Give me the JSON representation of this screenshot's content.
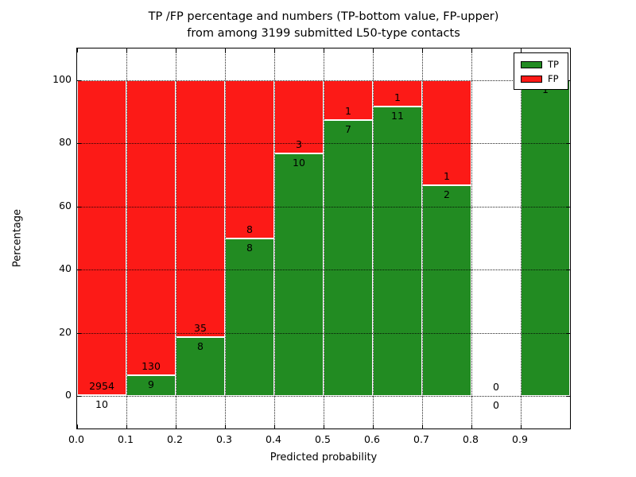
{
  "figure": {
    "title_line1": "TP /FP percentage and numbers (TP-bottom value, FP-upper)",
    "title_line2": "from among 3199 submitted L50-type contacts"
  },
  "chart_data": {
    "type": "bar",
    "stacked": true,
    "title": "TP /FP percentage and numbers (TP-bottom value, FP-upper) from among 3199 submitted L50-type contacts",
    "xlabel": "Predicted probability",
    "ylabel": "Percentage",
    "xlim": [
      0.0,
      1.0
    ],
    "ylim": [
      0,
      100
    ],
    "grid": true,
    "total_contacts": 3199,
    "xtick_labels": [
      "0.0",
      "0.1",
      "0.2",
      "0.3",
      "0.4",
      "0.5",
      "0.6",
      "0.7",
      "0.8",
      "0.9"
    ],
    "ytick_values": [
      0,
      20,
      40,
      60,
      80,
      100
    ],
    "legend": {
      "position": "upper right",
      "entries": [
        {
          "label": "TP",
          "color": "#228b22"
        },
        {
          "label": "FP",
          "color": "#fc1a17"
        }
      ]
    },
    "colors": {
      "tp": "#228b22",
      "fp": "#fc1a17"
    },
    "bins": [
      {
        "x0": 0.0,
        "x1": 0.1,
        "tp": 10,
        "fp": 2954,
        "tp_pct": 0.34,
        "fp_pct": 99.66
      },
      {
        "x0": 0.1,
        "x1": 0.2,
        "tp": 9,
        "fp": 130,
        "tp_pct": 6.47,
        "fp_pct": 93.53
      },
      {
        "x0": 0.2,
        "x1": 0.3,
        "tp": 8,
        "fp": 35,
        "tp_pct": 18.6,
        "fp_pct": 81.4
      },
      {
        "x0": 0.3,
        "x1": 0.4,
        "tp": 8,
        "fp": 8,
        "tp_pct": 50.0,
        "fp_pct": 50.0
      },
      {
        "x0": 0.4,
        "x1": 0.5,
        "tp": 10,
        "fp": 3,
        "tp_pct": 76.92,
        "fp_pct": 23.08
      },
      {
        "x0": 0.5,
        "x1": 0.6,
        "tp": 7,
        "fp": 1,
        "tp_pct": 87.5,
        "fp_pct": 12.5
      },
      {
        "x0": 0.6,
        "x1": 0.7,
        "tp": 11,
        "fp": 1,
        "tp_pct": 91.67,
        "fp_pct": 8.33
      },
      {
        "x0": 0.7,
        "x1": 0.8,
        "tp": 2,
        "fp": 1,
        "tp_pct": 66.67,
        "fp_pct": 33.33
      },
      {
        "x0": 0.8,
        "x1": 0.9,
        "tp": 0,
        "fp": 0,
        "tp_pct": 0,
        "fp_pct": 0
      },
      {
        "x0": 0.9,
        "x1": 1.0,
        "tp": 1,
        "fp": 0,
        "tp_pct": 100.0,
        "fp_pct": 0
      }
    ]
  }
}
